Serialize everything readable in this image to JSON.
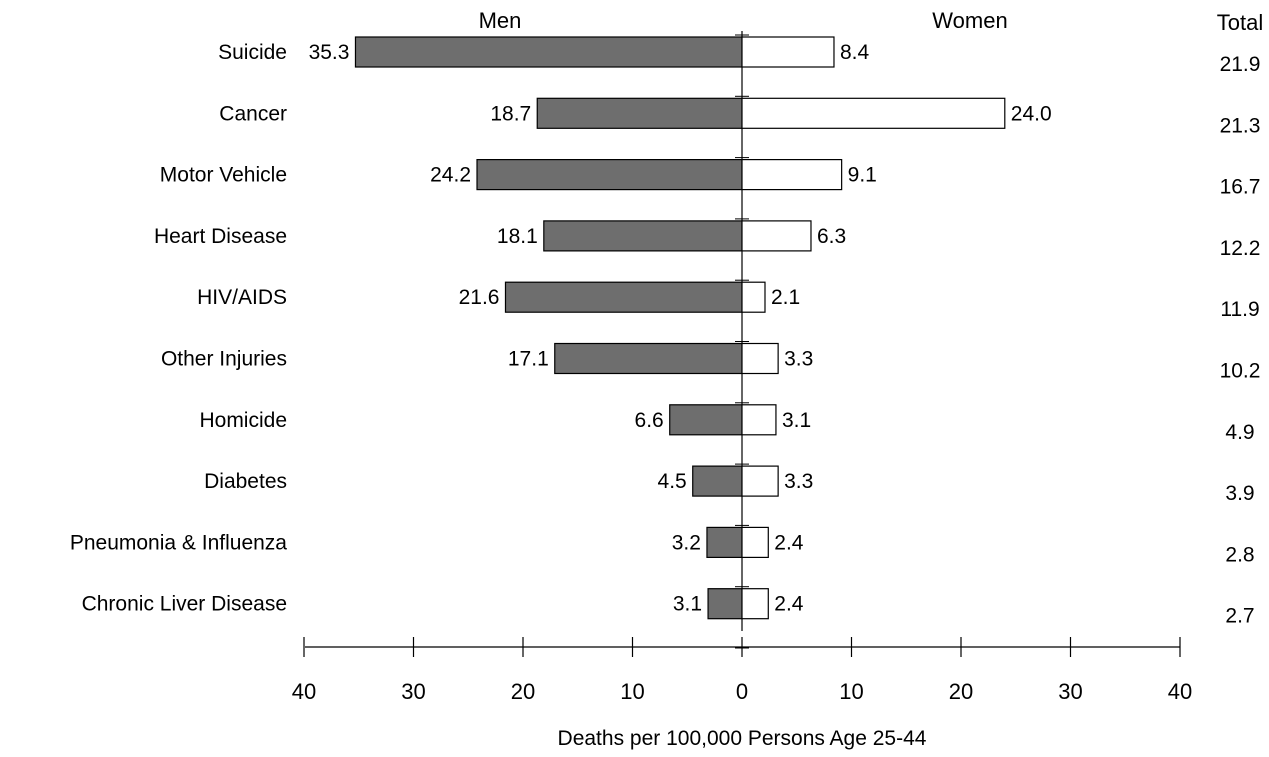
{
  "chart_data": {
    "type": "bar",
    "orientation": "horizontal-back-to-back",
    "categories": [
      "Suicide",
      "Cancer",
      "Motor Vehicle",
      "Heart Disease",
      "HIV/AIDS",
      "Other Injuries",
      "Homicide",
      "Diabetes",
      "Pneumonia & Influenza",
      "Chronic Liver Disease"
    ],
    "series": [
      {
        "name": "Men",
        "side": "left",
        "color": "#6e6e6e",
        "values": [
          35.3,
          18.7,
          24.2,
          18.1,
          21.6,
          17.1,
          6.6,
          4.5,
          3.2,
          3.1
        ],
        "labels": [
          "35.3",
          "18.7",
          "24.2",
          "18.1",
          "21.6",
          "17.1",
          "6.6",
          "4.5",
          "3.2",
          "3.1"
        ]
      },
      {
        "name": "Women",
        "side": "right",
        "color": "#ffffff",
        "values": [
          8.4,
          24.0,
          9.1,
          6.3,
          2.1,
          3.3,
          3.1,
          3.3,
          2.4,
          2.4
        ],
        "labels": [
          "8.4",
          "24.0",
          "9.1",
          "6.3",
          "2.1",
          "3.3",
          "3.1",
          "3.3",
          "2.4",
          "2.4"
        ]
      }
    ],
    "total": {
      "header": "Total",
      "values": [
        21.9,
        21.3,
        16.7,
        12.2,
        11.9,
        10.2,
        4.9,
        3.9,
        2.8,
        2.7
      ],
      "labels": [
        "21.9",
        "21.3",
        "16.7",
        "12.2",
        "11.9",
        "10.2",
        "4.9",
        "3.9",
        "2.8",
        "2.7"
      ]
    },
    "xlabel": "Deaths per 100,000 Persons Age 25-44",
    "xlim": [
      -40,
      40
    ],
    "xticks": [
      -40,
      -30,
      -20,
      -10,
      0,
      10,
      20,
      30,
      40
    ],
    "xtick_labels": [
      "40",
      "30",
      "20",
      "10",
      "0",
      "10",
      "20",
      "30",
      "40"
    ],
    "grid": false,
    "legend": "none"
  }
}
